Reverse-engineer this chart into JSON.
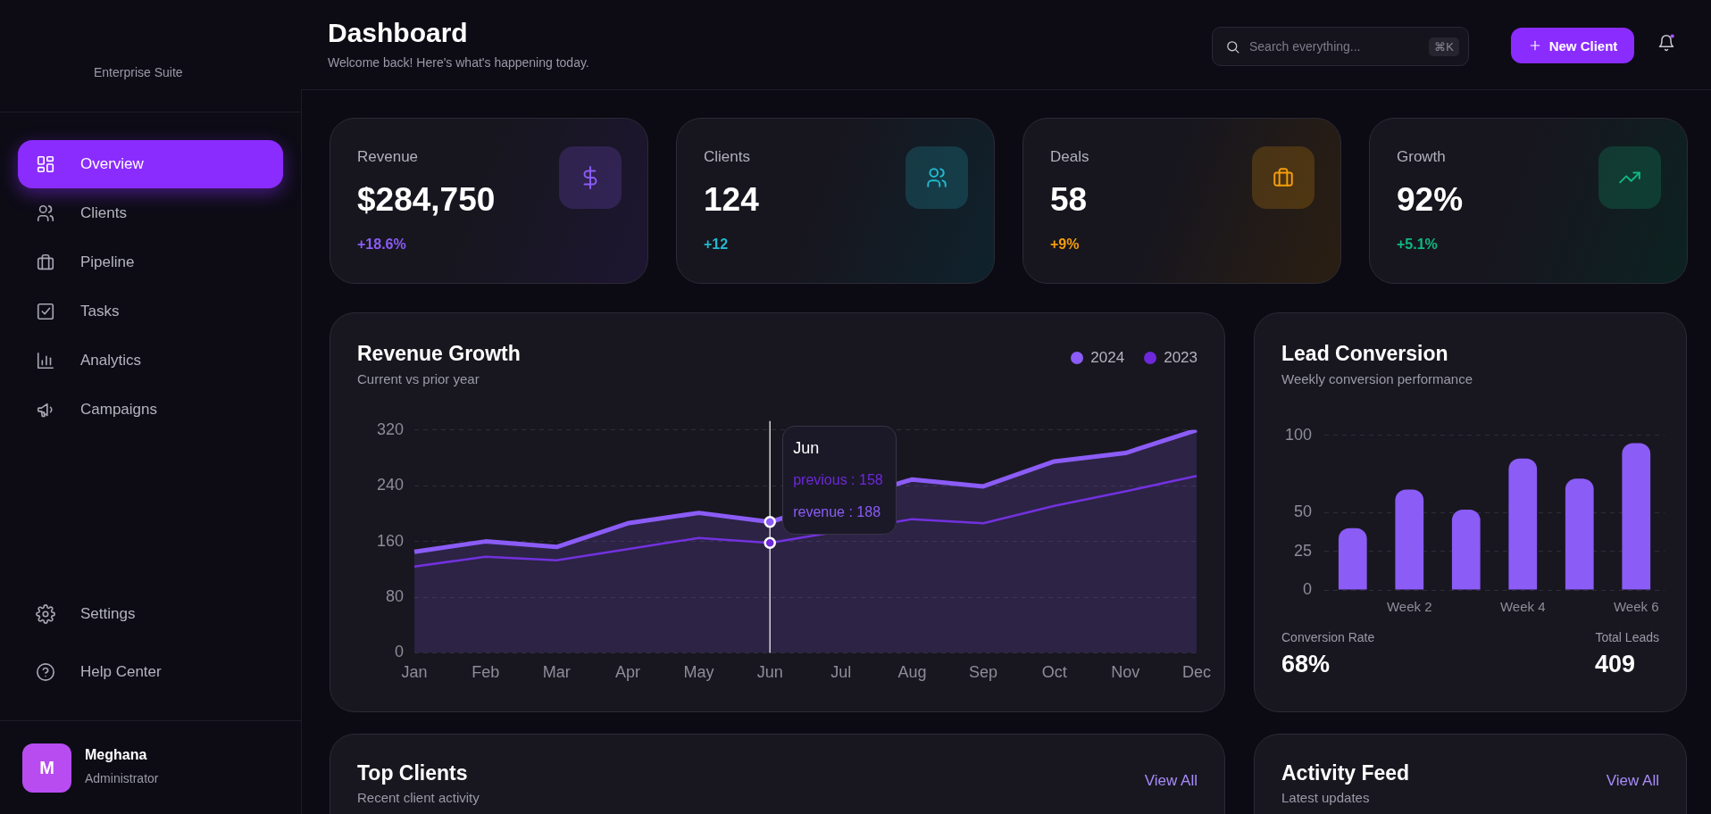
{
  "chart_data": [
    {
      "type": "other",
      "annotations": [
        "Enterprise Suite",
        "Overview",
        "Clients",
        "Pipeline",
        "Tasks",
        "Analytics",
        "Campaigns",
        "Settings",
        "Help Center",
        "M",
        "Meghana",
        "Administrator"
      ]
    },
    {
      "type": "other",
      "title": "Dashboard",
      "subtitle": "Welcome back! Here's what's happening today.",
      "annotations": [
        "Search everything...",
        "⌘K",
        "New Client"
      ]
    },
    {
      "type": "other",
      "title": "Revenue",
      "annotations": [
        "$284,750",
        "+18.6%"
      ],
      "color": "#8b5cf6"
    },
    {
      "type": "other",
      "title": "Clients",
      "annotations": [
        "124",
        "+12"
      ],
      "color": "#22b8cf"
    },
    {
      "type": "other",
      "title": "Deals",
      "annotations": [
        "58",
        "+9%"
      ],
      "color": "#f59e0b"
    },
    {
      "type": "other",
      "title": "Growth",
      "annotations": [
        "92%",
        "+5.1%"
      ],
      "color": "#10b981"
    },
    {
      "type": "area",
      "title": "Revenue Growth",
      "subtitle": "Current vs prior year",
      "categories": [
        "Jan",
        "Feb",
        "Mar",
        "Apr",
        "May",
        "Jun",
        "Jul",
        "Aug",
        "Sep",
        "Oct",
        "Nov",
        "Dec"
      ],
      "series": [
        {
          "name": "2024",
          "color": "#8b5cf6",
          "values": [
            145,
            160,
            152,
            186,
            201,
            188,
            null,
            249,
            239,
            275,
            287,
            320
          ]
        },
        {
          "name": "2023",
          "color": "#6d28d9",
          "type": "line",
          "values": [
            124,
            138,
            133,
            149,
            165,
            158,
            null,
            192,
            186,
            211,
            232,
            254
          ]
        }
      ],
      "ylim": [
        0,
        320
      ],
      "yticks": [
        0,
        80,
        160,
        240,
        320
      ],
      "grid": "y",
      "legend": "top right",
      "annotations": [
        "Jun",
        "previous : 158",
        "revenue : 188"
      ],
      "ref_lines": [
        {
          "axis": "x",
          "value": "Jun",
          "color": "#d4d4d8"
        }
      ]
    },
    {
      "type": "bar",
      "title": "Lead Conversion",
      "subtitle": "Weekly conversion performance",
      "categories": [
        null,
        "Week 2",
        null,
        "Week 4",
        null,
        "Week 6"
      ],
      "values": [
        40,
        65,
        52,
        85,
        72,
        95
      ],
      "color": "#8b5cf6",
      "ylim": [
        0,
        100
      ],
      "yticks": [
        0,
        25,
        50,
        100
      ],
      "grid": "y",
      "annotations": [
        "Conversion Rate",
        "68%",
        "Total Leads",
        "409"
      ]
    },
    {
      "type": "other",
      "title": "Top Clients",
      "subtitle": "Recent client activity",
      "annotations": [
        "View All"
      ]
    },
    {
      "type": "other",
      "title": "Activity Feed",
      "subtitle": "Latest updates",
      "annotations": [
        "View All"
      ]
    }
  ]
}
